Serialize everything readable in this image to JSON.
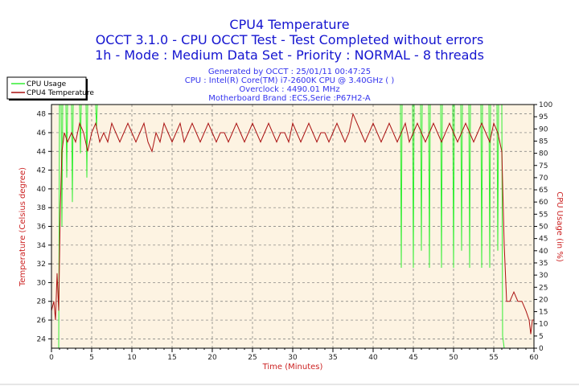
{
  "chart_data": {
    "type": "line",
    "title": "CPU4 Temperature",
    "subtitle_lines": [
      "OCCT 3.1.0 - CPU OCCT Test - Test Completed without errors",
      "1h - Mode : Medium Data Set - Priority : NORMAL - 8 threads"
    ],
    "info_lines": [
      "Generated by OCCT : 25/01/11 00:47:25",
      "CPU : Intel(R) Core(TM) i7-2600K CPU @ 3.40GHz (  )",
      "Overclock : 4490.01 MHz",
      "Motherboard Brand :ECS,Serie :P67H2-A"
    ],
    "xlabel": "Time (Minutes)",
    "ylabel_left": "Temperature (Celsius degree)",
    "ylabel_right": "CPU Usage (in %)",
    "xlim": [
      0,
      60
    ],
    "ylim_left": [
      23,
      49
    ],
    "ylim_right": [
      0,
      100
    ],
    "x_ticks": [
      "0",
      "5",
      "10",
      "15",
      "20",
      "25",
      "30",
      "35",
      "40",
      "45",
      "50",
      "55",
      "60"
    ],
    "y_ticks_left": [
      "24",
      "26",
      "28",
      "30",
      "32",
      "34",
      "36",
      "38",
      "40",
      "42",
      "44",
      "46",
      "48"
    ],
    "y_ticks_right": [
      "0",
      "5",
      "10",
      "15",
      "20",
      "25",
      "30",
      "35",
      "40",
      "45",
      "50",
      "55",
      "60",
      "65",
      "70",
      "75",
      "80",
      "85",
      "90",
      "95",
      "100"
    ],
    "grid": true,
    "legend_position": "top-left",
    "series": [
      {
        "name": "CPU Usage",
        "color": "#33ee33",
        "axis": "right",
        "points": [
          [
            0,
            0
          ],
          [
            0.9,
            0
          ],
          [
            1,
            100
          ],
          [
            1.2,
            100
          ],
          [
            1.3,
            50
          ],
          [
            1.4,
            100
          ],
          [
            1.8,
            100
          ],
          [
            1.9,
            70
          ],
          [
            2,
            100
          ],
          [
            2.5,
            100
          ],
          [
            2.6,
            60
          ],
          [
            2.7,
            100
          ],
          [
            3.5,
            100
          ],
          [
            3.6,
            80
          ],
          [
            3.7,
            100
          ],
          [
            4.3,
            100
          ],
          [
            4.4,
            70
          ],
          [
            4.5,
            100
          ],
          [
            5.5,
            100
          ],
          [
            5.6,
            90
          ],
          [
            5.7,
            100
          ],
          [
            43.4,
            100
          ],
          [
            43.5,
            33
          ],
          [
            43.6,
            100
          ],
          [
            44.9,
            100
          ],
          [
            45,
            33
          ],
          [
            45.1,
            100
          ],
          [
            45.9,
            100
          ],
          [
            46,
            40
          ],
          [
            46.1,
            100
          ],
          [
            46.9,
            100
          ],
          [
            47,
            33
          ],
          [
            47.1,
            100
          ],
          [
            48.4,
            100
          ],
          [
            48.5,
            33
          ],
          [
            48.6,
            100
          ],
          [
            49.9,
            100
          ],
          [
            50,
            33
          ],
          [
            50.1,
            100
          ],
          [
            50.9,
            100
          ],
          [
            51,
            40
          ],
          [
            51.1,
            100
          ],
          [
            51.9,
            100
          ],
          [
            52,
            33
          ],
          [
            52.1,
            100
          ],
          [
            53.4,
            100
          ],
          [
            53.5,
            33
          ],
          [
            53.6,
            100
          ],
          [
            54.4,
            100
          ],
          [
            54.5,
            33
          ],
          [
            54.6,
            100
          ],
          [
            55.4,
            100
          ],
          [
            55.5,
            40
          ],
          [
            55.6,
            100
          ],
          [
            56,
            100
          ],
          [
            56.1,
            5
          ],
          [
            56.3,
            0
          ],
          [
            60,
            0
          ]
        ]
      },
      {
        "name": "CPU4 Temperature",
        "color": "#aa1111",
        "axis": "left",
        "points": [
          [
            0,
            27
          ],
          [
            0.3,
            28
          ],
          [
            0.5,
            26
          ],
          [
            0.7,
            31
          ],
          [
            0.9,
            27
          ],
          [
            1.1,
            38
          ],
          [
            1.3,
            44
          ],
          [
            1.6,
            46
          ],
          [
            2,
            45
          ],
          [
            2.5,
            46
          ],
          [
            3,
            45
          ],
          [
            3.5,
            47
          ],
          [
            4,
            46
          ],
          [
            4.5,
            44
          ],
          [
            5,
            46
          ],
          [
            5.5,
            47
          ],
          [
            6,
            45
          ],
          [
            6.5,
            46
          ],
          [
            7,
            45
          ],
          [
            7.5,
            47
          ],
          [
            8,
            46
          ],
          [
            8.5,
            45
          ],
          [
            9,
            46
          ],
          [
            9.5,
            47
          ],
          [
            10,
            46
          ],
          [
            10.5,
            45
          ],
          [
            11,
            46
          ],
          [
            11.5,
            47
          ],
          [
            12,
            45
          ],
          [
            12.5,
            44
          ],
          [
            13,
            46
          ],
          [
            13.5,
            45
          ],
          [
            14,
            47
          ],
          [
            14.5,
            46
          ],
          [
            15,
            45
          ],
          [
            15.5,
            46
          ],
          [
            16,
            47
          ],
          [
            16.5,
            45
          ],
          [
            17,
            46
          ],
          [
            17.5,
            47
          ],
          [
            18,
            46
          ],
          [
            18.5,
            45
          ],
          [
            19,
            46
          ],
          [
            19.5,
            47
          ],
          [
            20,
            46
          ],
          [
            20.5,
            45
          ],
          [
            21,
            46
          ],
          [
            21.5,
            46
          ],
          [
            22,
            45
          ],
          [
            22.5,
            46
          ],
          [
            23,
            47
          ],
          [
            23.5,
            46
          ],
          [
            24,
            45
          ],
          [
            24.5,
            46
          ],
          [
            25,
            47
          ],
          [
            25.5,
            46
          ],
          [
            26,
            45
          ],
          [
            26.5,
            46
          ],
          [
            27,
            47
          ],
          [
            27.5,
            46
          ],
          [
            28,
            45
          ],
          [
            28.5,
            46
          ],
          [
            29,
            46
          ],
          [
            29.5,
            45
          ],
          [
            30,
            47
          ],
          [
            30.5,
            46
          ],
          [
            31,
            45
          ],
          [
            31.5,
            46
          ],
          [
            32,
            47
          ],
          [
            32.5,
            46
          ],
          [
            33,
            45
          ],
          [
            33.5,
            46
          ],
          [
            34,
            46
          ],
          [
            34.5,
            45
          ],
          [
            35,
            46
          ],
          [
            35.5,
            47
          ],
          [
            36,
            46
          ],
          [
            36.5,
            45
          ],
          [
            37,
            46
          ],
          [
            37.5,
            48
          ],
          [
            38,
            47
          ],
          [
            38.5,
            46
          ],
          [
            39,
            45
          ],
          [
            39.5,
            46
          ],
          [
            40,
            47
          ],
          [
            40.5,
            46
          ],
          [
            41,
            45
          ],
          [
            41.5,
            46
          ],
          [
            42,
            47
          ],
          [
            42.5,
            46
          ],
          [
            43,
            45
          ],
          [
            43.5,
            46
          ],
          [
            44,
            47
          ],
          [
            44.5,
            45
          ],
          [
            45,
            46
          ],
          [
            45.5,
            47
          ],
          [
            46,
            46
          ],
          [
            46.5,
            45
          ],
          [
            47,
            46
          ],
          [
            47.5,
            47
          ],
          [
            48,
            46
          ],
          [
            48.5,
            45
          ],
          [
            49,
            46
          ],
          [
            49.5,
            47
          ],
          [
            50,
            46
          ],
          [
            50.5,
            45
          ],
          [
            51,
            46
          ],
          [
            51.5,
            47
          ],
          [
            52,
            46
          ],
          [
            52.5,
            45
          ],
          [
            53,
            46
          ],
          [
            53.5,
            47
          ],
          [
            54,
            46
          ],
          [
            54.5,
            45
          ],
          [
            55,
            47
          ],
          [
            55.5,
            46
          ],
          [
            56,
            44
          ],
          [
            56.3,
            34
          ],
          [
            56.6,
            28
          ],
          [
            57,
            28
          ],
          [
            57.5,
            29
          ],
          [
            58,
            28
          ],
          [
            58.5,
            28
          ],
          [
            59,
            27
          ],
          [
            59.4,
            26
          ],
          [
            59.6,
            24.5
          ],
          [
            59.8,
            26
          ],
          [
            60,
            26
          ]
        ]
      }
    ]
  }
}
